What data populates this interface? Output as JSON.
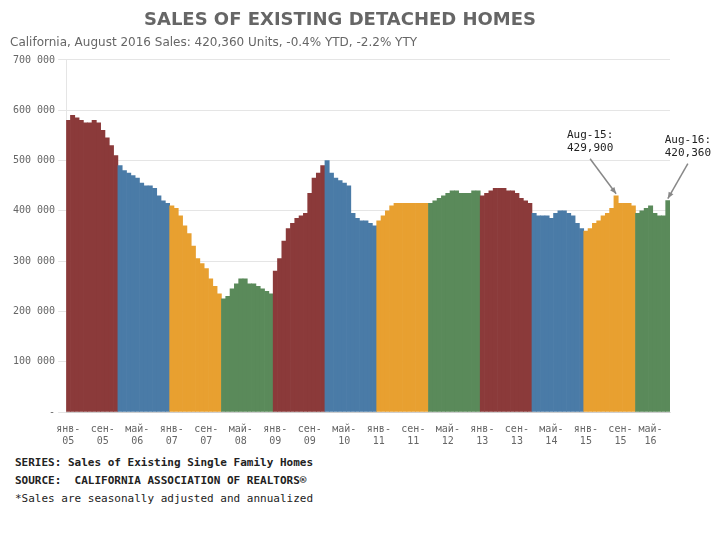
{
  "chart_data": {
    "type": "bar",
    "title": "SALES OF EXISTING DETACHED HOMES",
    "subtitle": "California, August 2016 Sales: 420,360 Units, -0.4% YTD, -2.2% YTY",
    "footnotes": [
      "SERIES: Sales of Existing Single Family Homes",
      "SOURCE:  CALIFORNIA ASSOCIATION OF REALTORS®",
      "*Sales are seasonally adjusted and annualized"
    ],
    "categories": [
      "янв-\n05",
      null,
      null,
      null,
      null,
      null,
      null,
      null,
      "сен-\n05",
      null,
      null,
      null,
      null,
      null,
      null,
      null,
      "май-\n06",
      null,
      null,
      null,
      null,
      null,
      null,
      null,
      "янв-\n07",
      null,
      null,
      null,
      null,
      null,
      null,
      null,
      "сен-\n07",
      null,
      null,
      null,
      null,
      null,
      null,
      null,
      "май-\n08",
      null,
      null,
      null,
      null,
      null,
      null,
      null,
      "янв-\n09",
      null,
      null,
      null,
      null,
      null,
      null,
      null,
      "сен-\n09",
      null,
      null,
      null,
      null,
      null,
      null,
      null,
      "май-\n10",
      null,
      null,
      null,
      null,
      null,
      null,
      null,
      "янв-\n11",
      null,
      null,
      null,
      null,
      null,
      null,
      null,
      "сен-\n11",
      null,
      null,
      null,
      null,
      null,
      null,
      null,
      "май-\n12",
      null,
      null,
      null,
      null,
      null,
      null,
      null,
      "янв-\n13",
      null,
      null,
      null,
      null,
      null,
      null,
      null,
      "сен-\n13",
      null,
      null,
      null,
      null,
      null,
      null,
      null,
      "май-\n14",
      null,
      null,
      null,
      null,
      null,
      null,
      null,
      "янв-\n15",
      null,
      null,
      null,
      null,
      null,
      null,
      null,
      "сен-\n15",
      null,
      null,
      null,
      null,
      null,
      null,
      "май-\n16",
      null,
      null,
      null,
      null
    ],
    "values": [
      580000,
      590000,
      585000,
      580000,
      575000,
      575000,
      580000,
      575000,
      560000,
      545000,
      530000,
      510000,
      490000,
      480000,
      475000,
      470000,
      465000,
      455000,
      450000,
      450000,
      445000,
      430000,
      420000,
      415000,
      410000,
      405000,
      390000,
      370000,
      355000,
      330000,
      305000,
      295000,
      285000,
      265000,
      250000,
      235000,
      225000,
      230000,
      245000,
      255000,
      265000,
      265000,
      255000,
      255000,
      250000,
      245000,
      240000,
      235000,
      280000,
      305000,
      340000,
      365000,
      375000,
      385000,
      390000,
      395000,
      435000,
      465000,
      475000,
      490000,
      500000,
      475000,
      465000,
      460000,
      455000,
      450000,
      395000,
      385000,
      380000,
      380000,
      375000,
      370000,
      380000,
      390000,
      400000,
      410000,
      415000,
      415000,
      415000,
      415000,
      415000,
      415000,
      415000,
      415000,
      415000,
      420000,
      425000,
      430000,
      435000,
      440000,
      440000,
      435000,
      435000,
      435000,
      440000,
      440000,
      430000,
      435000,
      440000,
      445000,
      445000,
      445000,
      440000,
      440000,
      435000,
      425000,
      420000,
      415000,
      395000,
      390000,
      390000,
      390000,
      385000,
      395000,
      400000,
      400000,
      395000,
      390000,
      375000,
      365000,
      360000,
      365000,
      375000,
      380000,
      390000,
      395000,
      405000,
      429900,
      415000,
      415000,
      415000,
      410000,
      395000,
      400000,
      405000,
      410000,
      395000,
      390000,
      390000,
      420360
    ],
    "colors": [
      "#8B3A3A",
      "#8B3A3A",
      "#8B3A3A",
      "#8B3A3A",
      "#8B3A3A",
      "#8B3A3A",
      "#8B3A3A",
      "#8B3A3A",
      "#8B3A3A",
      "#8B3A3A",
      "#8B3A3A",
      "#8B3A3A",
      "#4A7BA7",
      "#4A7BA7",
      "#4A7BA7",
      "#4A7BA7",
      "#4A7BA7",
      "#4A7BA7",
      "#4A7BA7",
      "#4A7BA7",
      "#4A7BA7",
      "#4A7BA7",
      "#4A7BA7",
      "#4A7BA7",
      "#E8A030",
      "#E8A030",
      "#E8A030",
      "#E8A030",
      "#E8A030",
      "#E8A030",
      "#E8A030",
      "#E8A030",
      "#E8A030",
      "#E8A030",
      "#E8A030",
      "#E8A030",
      "#5A8A5A",
      "#5A8A5A",
      "#5A8A5A",
      "#5A8A5A",
      "#5A8A5A",
      "#5A8A5A",
      "#5A8A5A",
      "#5A8A5A",
      "#5A8A5A",
      "#5A8A5A",
      "#5A8A5A",
      "#5A8A5A",
      "#8B3A3A",
      "#8B3A3A",
      "#8B3A3A",
      "#8B3A3A",
      "#8B3A3A",
      "#8B3A3A",
      "#8B3A3A",
      "#8B3A3A",
      "#8B3A3A",
      "#8B3A3A",
      "#8B3A3A",
      "#8B3A3A",
      "#4A7BA7",
      "#4A7BA7",
      "#4A7BA7",
      "#4A7BA7",
      "#4A7BA7",
      "#4A7BA7",
      "#4A7BA7",
      "#4A7BA7",
      "#4A7BA7",
      "#4A7BA7",
      "#4A7BA7",
      "#4A7BA7",
      "#E8A030",
      "#E8A030",
      "#E8A030",
      "#E8A030",
      "#E8A030",
      "#E8A030",
      "#E8A030",
      "#E8A030",
      "#E8A030",
      "#E8A030",
      "#E8A030",
      "#E8A030",
      "#5A8A5A",
      "#5A8A5A",
      "#5A8A5A",
      "#5A8A5A",
      "#5A8A5A",
      "#5A8A5A",
      "#5A8A5A",
      "#5A8A5A",
      "#5A8A5A",
      "#5A8A5A",
      "#5A8A5A",
      "#5A8A5A",
      "#8B3A3A",
      "#8B3A3A",
      "#8B3A3A",
      "#8B3A3A",
      "#8B3A3A",
      "#8B3A3A",
      "#8B3A3A",
      "#8B3A3A",
      "#8B3A3A",
      "#8B3A3A",
      "#8B3A3A",
      "#8B3A3A",
      "#4A7BA7",
      "#4A7BA7",
      "#4A7BA7",
      "#4A7BA7",
      "#4A7BA7",
      "#4A7BA7",
      "#4A7BA7",
      "#4A7BA7",
      "#4A7BA7",
      "#4A7BA7",
      "#4A7BA7",
      "#4A7BA7",
      "#E8A030",
      "#E8A030",
      "#E8A030",
      "#E8A030",
      "#E8A030",
      "#E8A030",
      "#E8A030",
      "#E8A030",
      "#E8A030",
      "#E8A030",
      "#E8A030",
      "#E8A030",
      "#5A8A5A",
      "#5A8A5A",
      "#5A8A5A",
      "#5A8A5A",
      "#5A8A5A",
      "#5A8A5A",
      "#5A8A5A",
      "#5A8A5A"
    ],
    "ylim": [
      0,
      700000
    ],
    "yticks": [
      {
        "value": 0,
        "label": "-"
      },
      {
        "value": 100000,
        "label": "100 000"
      },
      {
        "value": 200000,
        "label": "200 000"
      },
      {
        "value": 300000,
        "label": "300 000"
      },
      {
        "value": 400000,
        "label": "400 000"
      },
      {
        "value": 500000,
        "label": "500 000"
      },
      {
        "value": 600000,
        "label": "600 000"
      },
      {
        "value": 700000,
        "label": "700 000"
      }
    ],
    "grid": true,
    "annotations": [
      {
        "text": "Aug-15:\n429,900",
        "x": 127,
        "y": 429900
      },
      {
        "text": "Aug-16:\n420,360",
        "x": 139,
        "y": 420360
      }
    ]
  }
}
